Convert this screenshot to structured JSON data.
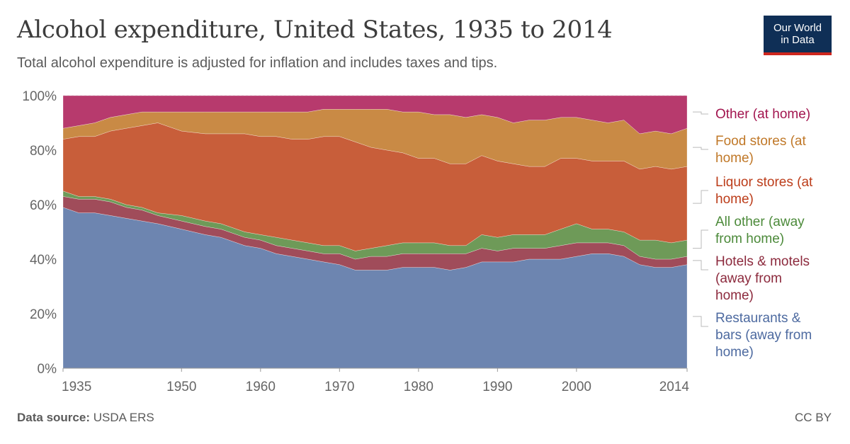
{
  "header": {
    "title": "Alcohol expenditure, United States, 1935 to 2014",
    "subtitle": "Total alcohol expenditure is adjusted for inflation and includes taxes and tips.",
    "logo_line1": "Our World",
    "logo_line2": "in Data"
  },
  "footer": {
    "source_label": "Data source:",
    "source_value": "USDA ERS",
    "license": "CC BY"
  },
  "chart_data": {
    "type": "area",
    "stacked": true,
    "normalized": true,
    "xlim": [
      1935,
      2014
    ],
    "ylim": [
      0,
      100
    ],
    "x_ticks": [
      1935,
      1950,
      1960,
      1970,
      1980,
      1990,
      2000,
      2014
    ],
    "y_ticks": [
      0,
      20,
      40,
      60,
      80,
      100
    ],
    "y_tick_suffix": "%",
    "x": [
      1935,
      1937,
      1939,
      1941,
      1943,
      1945,
      1947,
      1950,
      1953,
      1955,
      1958,
      1960,
      1962,
      1964,
      1966,
      1968,
      1970,
      1972,
      1974,
      1976,
      1978,
      1980,
      1982,
      1984,
      1986,
      1988,
      1990,
      1992,
      1994,
      1996,
      1998,
      2000,
      2002,
      2004,
      2006,
      2008,
      2010,
      2012,
      2014
    ],
    "series": [
      {
        "name": "Restaurants & bars (away from home)",
        "color": "#6d85b0",
        "values": [
          59,
          57,
          57,
          56,
          55,
          54,
          53,
          51,
          49,
          48,
          45,
          44,
          42,
          41,
          40,
          39,
          38,
          36,
          36,
          36,
          37,
          37,
          37,
          36,
          37,
          39,
          39,
          39,
          40,
          40,
          40,
          41,
          42,
          42,
          41,
          38,
          37,
          37,
          38
        ]
      },
      {
        "name": "Hotels & motels (away from home)",
        "color": "#a04c5a",
        "values": [
          4,
          5,
          5,
          5,
          4,
          4,
          3,
          3,
          3,
          3,
          3,
          3,
          3,
          3,
          3,
          3,
          4,
          4,
          5,
          5,
          5,
          5,
          5,
          6,
          5,
          5,
          4,
          5,
          4,
          4,
          5,
          5,
          4,
          4,
          4,
          3,
          3,
          3,
          3
        ]
      },
      {
        "name": "All other (away from home)",
        "color": "#6e9a58",
        "values": [
          2,
          1,
          1,
          1,
          1,
          1,
          1,
          2,
          2,
          2,
          2,
          2,
          3,
          3,
          3,
          3,
          3,
          3,
          3,
          4,
          4,
          4,
          4,
          3,
          3,
          5,
          5,
          5,
          5,
          5,
          6,
          7,
          5,
          5,
          5,
          6,
          7,
          6,
          6
        ]
      },
      {
        "name": "Liquor stores (at home)",
        "color": "#c85e3a",
        "values": [
          19,
          22,
          22,
          25,
          28,
          30,
          33,
          31,
          32,
          33,
          36,
          36,
          37,
          37,
          38,
          40,
          40,
          40,
          37,
          35,
          33,
          31,
          31,
          30,
          30,
          29,
          28,
          26,
          25,
          25,
          26,
          24,
          25,
          25,
          26,
          26,
          27,
          27,
          27
        ]
      },
      {
        "name": "Food stores (at home)",
        "color": "#c98a45",
        "values": [
          4,
          4,
          5,
          5,
          5,
          5,
          4,
          7,
          8,
          8,
          8,
          9,
          9,
          10,
          10,
          10,
          10,
          12,
          14,
          15,
          15,
          17,
          16,
          18,
          17,
          15,
          16,
          15,
          17,
          17,
          15,
          15,
          15,
          14,
          15,
          13,
          13,
          13,
          14
        ]
      },
      {
        "name": "Other (at home)",
        "color": "#b73a6d",
        "values": [
          12,
          11,
          10,
          8,
          7,
          6,
          6,
          6,
          6,
          6,
          6,
          6,
          6,
          6,
          6,
          5,
          5,
          5,
          5,
          5,
          6,
          6,
          7,
          7,
          8,
          7,
          8,
          10,
          9,
          9,
          8,
          8,
          9,
          10,
          9,
          14,
          13,
          14,
          12
        ]
      }
    ],
    "legend": {
      "placement": "right",
      "entries": [
        {
          "label": "Other (at home)",
          "color": "#a2154f"
        },
        {
          "label": "Food stores (at home)",
          "color": "#c07828"
        },
        {
          "label": "Liquor stores (at home)",
          "color": "#bc3d1a"
        },
        {
          "label": "All other (away from home)",
          "color": "#4c8a3a"
        },
        {
          "label": "Hotels & motels (away from home)",
          "color": "#8c2a3d"
        },
        {
          "label": "Restaurants & bars (away from home)",
          "color": "#4d6aa0"
        }
      ]
    }
  }
}
